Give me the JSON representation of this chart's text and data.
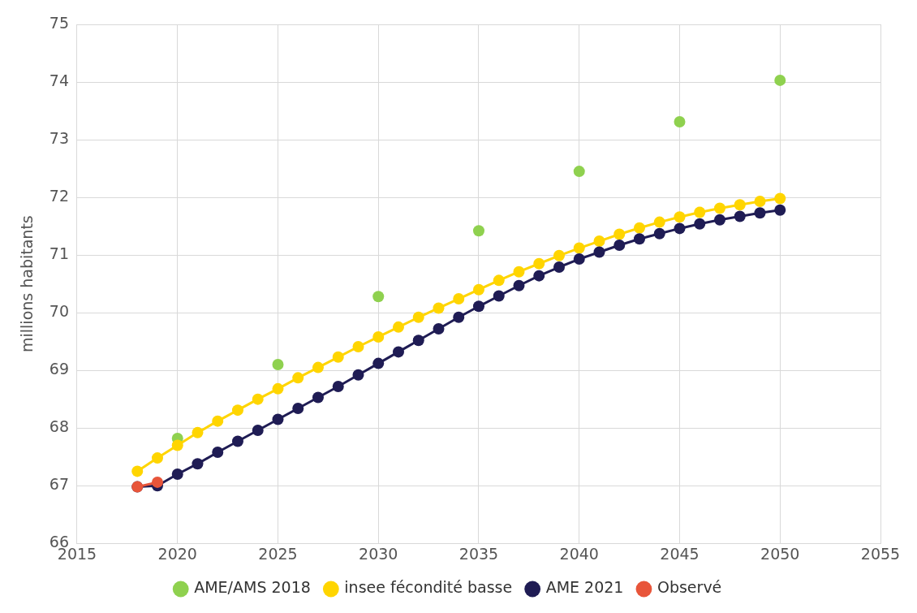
{
  "chart_data": {
    "type": "line",
    "ylabel": "millions habitants",
    "xlim": [
      2015,
      2055
    ],
    "xticks": [
      2015,
      2020,
      2025,
      2030,
      2035,
      2040,
      2045,
      2050,
      2055
    ],
    "ylim": [
      66,
      75
    ],
    "yticks": [
      66,
      67,
      68,
      69,
      70,
      71,
      72,
      73,
      74,
      75
    ],
    "grid": true,
    "legend": "bottom",
    "marker": "circle",
    "series": [
      {
        "name": "AME/AMS 2018",
        "type": "scatter",
        "color": "#8fd14f",
        "x": [
          2020,
          2025,
          2030,
          2035,
          2040,
          2045,
          2050
        ],
        "values": [
          67.82,
          69.1,
          70.28,
          71.42,
          72.45,
          73.31,
          74.03
        ]
      },
      {
        "name": "insee fécondité basse",
        "color": "#ffd500",
        "x": [
          2018,
          2019,
          2020,
          2021,
          2022,
          2023,
          2024,
          2025,
          2026,
          2027,
          2028,
          2029,
          2030,
          2031,
          2032,
          2033,
          2034,
          2035,
          2036,
          2037,
          2038,
          2039,
          2040,
          2041,
          2042,
          2043,
          2044,
          2045,
          2046,
          2047,
          2048,
          2049,
          2050
        ],
        "values": [
          67.25,
          67.48,
          67.7,
          67.92,
          68.12,
          68.31,
          68.5,
          68.68,
          68.87,
          69.05,
          69.23,
          69.41,
          69.58,
          69.75,
          69.92,
          70.08,
          70.24,
          70.4,
          70.56,
          70.71,
          70.85,
          70.99,
          71.12,
          71.24,
          71.36,
          71.47,
          71.57,
          71.66,
          71.74,
          71.81,
          71.87,
          71.93,
          71.98
        ]
      },
      {
        "name": "AME 2021",
        "color": "#1f1c54",
        "x": [
          2018,
          2019,
          2020,
          2021,
          2022,
          2023,
          2024,
          2025,
          2026,
          2027,
          2028,
          2029,
          2030,
          2031,
          2032,
          2033,
          2034,
          2035,
          2036,
          2037,
          2038,
          2039,
          2040,
          2041,
          2042,
          2043,
          2044,
          2045,
          2046,
          2047,
          2048,
          2049,
          2050
        ],
        "values": [
          66.98,
          67.0,
          67.2,
          67.38,
          67.58,
          67.77,
          67.96,
          68.15,
          68.34,
          68.53,
          68.72,
          68.92,
          69.12,
          69.32,
          69.52,
          69.72,
          69.92,
          70.11,
          70.29,
          70.47,
          70.64,
          70.79,
          70.93,
          71.05,
          71.17,
          71.28,
          71.37,
          71.46,
          71.54,
          71.61,
          71.67,
          71.73,
          71.78
        ]
      },
      {
        "name": "Observé",
        "color": "#e8553a",
        "x": [
          2018,
          2019
        ],
        "values": [
          66.98,
          67.06
        ]
      }
    ]
  }
}
